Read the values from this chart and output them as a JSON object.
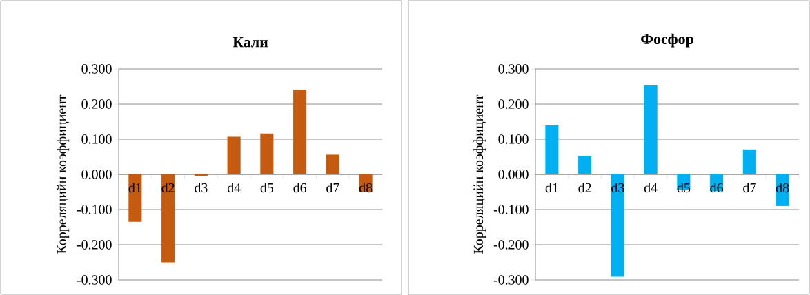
{
  "chart_data": [
    {
      "type": "bar",
      "title": "Кали",
      "ylabel": "Корреляцийн коэффициент",
      "categories": [
        "d1",
        "d2",
        "d3",
        "d4",
        "d5",
        "d6",
        "d7",
        "d8"
      ],
      "values": [
        -0.135,
        -0.25,
        -0.005,
        0.107,
        0.116,
        0.241,
        0.056,
        -0.05
      ],
      "color": "#c55a11",
      "ylim": [
        -0.3,
        0.3
      ],
      "yticks": [
        {
          "value": -0.3,
          "label": "-0.300"
        },
        {
          "value": -0.2,
          "label": "-0.200"
        },
        {
          "value": -0.1,
          "label": "-0.100"
        },
        {
          "value": 0,
          "label": "0.000"
        },
        {
          "value": 0.1,
          "label": "0.100"
        },
        {
          "value": 0.2,
          "label": "0.200"
        },
        {
          "value": 0.3,
          "label": "0.300"
        }
      ],
      "grid": "y"
    },
    {
      "type": "bar",
      "title": "Фосфор",
      "ylabel": "Корреляцийн коэффициент",
      "categories": [
        "d1",
        "d2",
        "d3",
        "d4",
        "d5",
        "d6",
        "d7",
        "d8"
      ],
      "values": [
        0.141,
        0.052,
        -0.291,
        0.254,
        -0.044,
        -0.048,
        0.071,
        -0.09
      ],
      "color": "#00b0f0",
      "ylim": [
        -0.3,
        0.3
      ],
      "yticks": [
        {
          "value": -0.3,
          "label": "-0.300"
        },
        {
          "value": -0.2,
          "label": "-0.200"
        },
        {
          "value": -0.1,
          "label": "-0.100"
        },
        {
          "value": 0,
          "label": "0.000"
        },
        {
          "value": 0.1,
          "label": "0.100"
        },
        {
          "value": 0.2,
          "label": "0.200"
        },
        {
          "value": 0.3,
          "label": "0.300"
        }
      ],
      "grid": "y"
    }
  ]
}
